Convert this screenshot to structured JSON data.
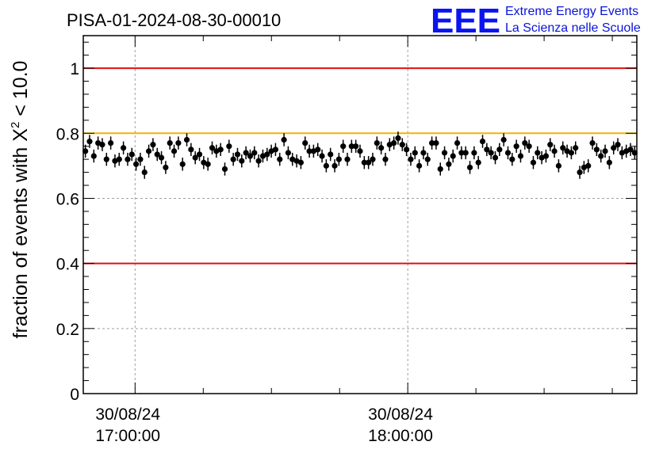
{
  "chart_data": {
    "type": "scatter",
    "title": "PISA-01-2024-08-30-00010",
    "ylabel_prefix": "fraction of events with ",
    "ylabel_chi": "X",
    "ylabel_sup": "2",
    "ylabel_suffix": " < 10.0",
    "xlabel": "",
    "ylim": [
      0,
      1.1
    ],
    "y_ticks": [
      "0",
      "0.2",
      "0.4",
      "0.6",
      "0.8",
      "1"
    ],
    "y_tick_values": [
      0,
      0.2,
      0.4,
      0.6,
      0.8,
      1
    ],
    "x_ticks": [
      {
        "date": "30/08/24",
        "time": "17:00:00",
        "hour": 17.0
      },
      {
        "date": "30/08/24",
        "time": "18:00:00",
        "hour": 18.0
      }
    ],
    "x_range_hours": [
      16.81,
      18.84
    ],
    "grid": true,
    "reference_lines": [
      {
        "y": 1.0,
        "color": "#e01010"
      },
      {
        "y": 0.8,
        "color": "#f0b400"
      },
      {
        "y": 0.4,
        "color": "#e01010"
      }
    ],
    "error_bar": 0.02,
    "series": [
      {
        "marker_color": "#000000",
        "values": [
          0.745,
          0.775,
          0.73,
          0.77,
          0.765,
          0.72,
          0.77,
          0.715,
          0.72,
          0.755,
          0.72,
          0.735,
          0.705,
          0.72,
          0.68,
          0.745,
          0.765,
          0.735,
          0.725,
          0.695,
          0.77,
          0.745,
          0.77,
          0.705,
          0.78,
          0.75,
          0.725,
          0.735,
          0.71,
          0.705,
          0.755,
          0.745,
          0.75,
          0.69,
          0.76,
          0.72,
          0.735,
          0.715,
          0.74,
          0.73,
          0.74,
          0.715,
          0.73,
          0.735,
          0.745,
          0.75,
          0.72,
          0.78,
          0.74,
          0.72,
          0.715,
          0.71,
          0.77,
          0.745,
          0.745,
          0.75,
          0.73,
          0.7,
          0.735,
          0.7,
          0.72,
          0.76,
          0.72,
          0.76,
          0.76,
          0.745,
          0.71,
          0.71,
          0.72,
          0.77,
          0.755,
          0.72,
          0.765,
          0.77,
          0.785,
          0.765,
          0.75,
          0.72,
          0.74,
          0.7,
          0.74,
          0.72,
          0.77,
          0.77,
          0.69,
          0.74,
          0.705,
          0.73,
          0.77,
          0.74,
          0.74,
          0.695,
          0.74,
          0.71,
          0.775,
          0.75,
          0.74,
          0.725,
          0.75,
          0.78,
          0.74,
          0.72,
          0.76,
          0.73,
          0.77,
          0.76,
          0.71,
          0.74,
          0.725,
          0.73,
          0.765,
          0.745,
          0.7,
          0.755,
          0.745,
          0.74,
          0.755,
          0.68,
          0.695,
          0.7,
          0.77,
          0.75,
          0.73,
          0.745,
          0.71,
          0.755,
          0.765,
          0.74,
          0.745,
          0.75,
          0.74
        ]
      }
    ]
  },
  "logo": {
    "mark": "EEE",
    "line1": "Extreme Energy Events",
    "line2": "La Scienza nelle Scuole",
    "color": "#0a14f0"
  },
  "colors": {
    "frame": "#000000",
    "grid": "#a0a0a0",
    "points": "#000000"
  }
}
